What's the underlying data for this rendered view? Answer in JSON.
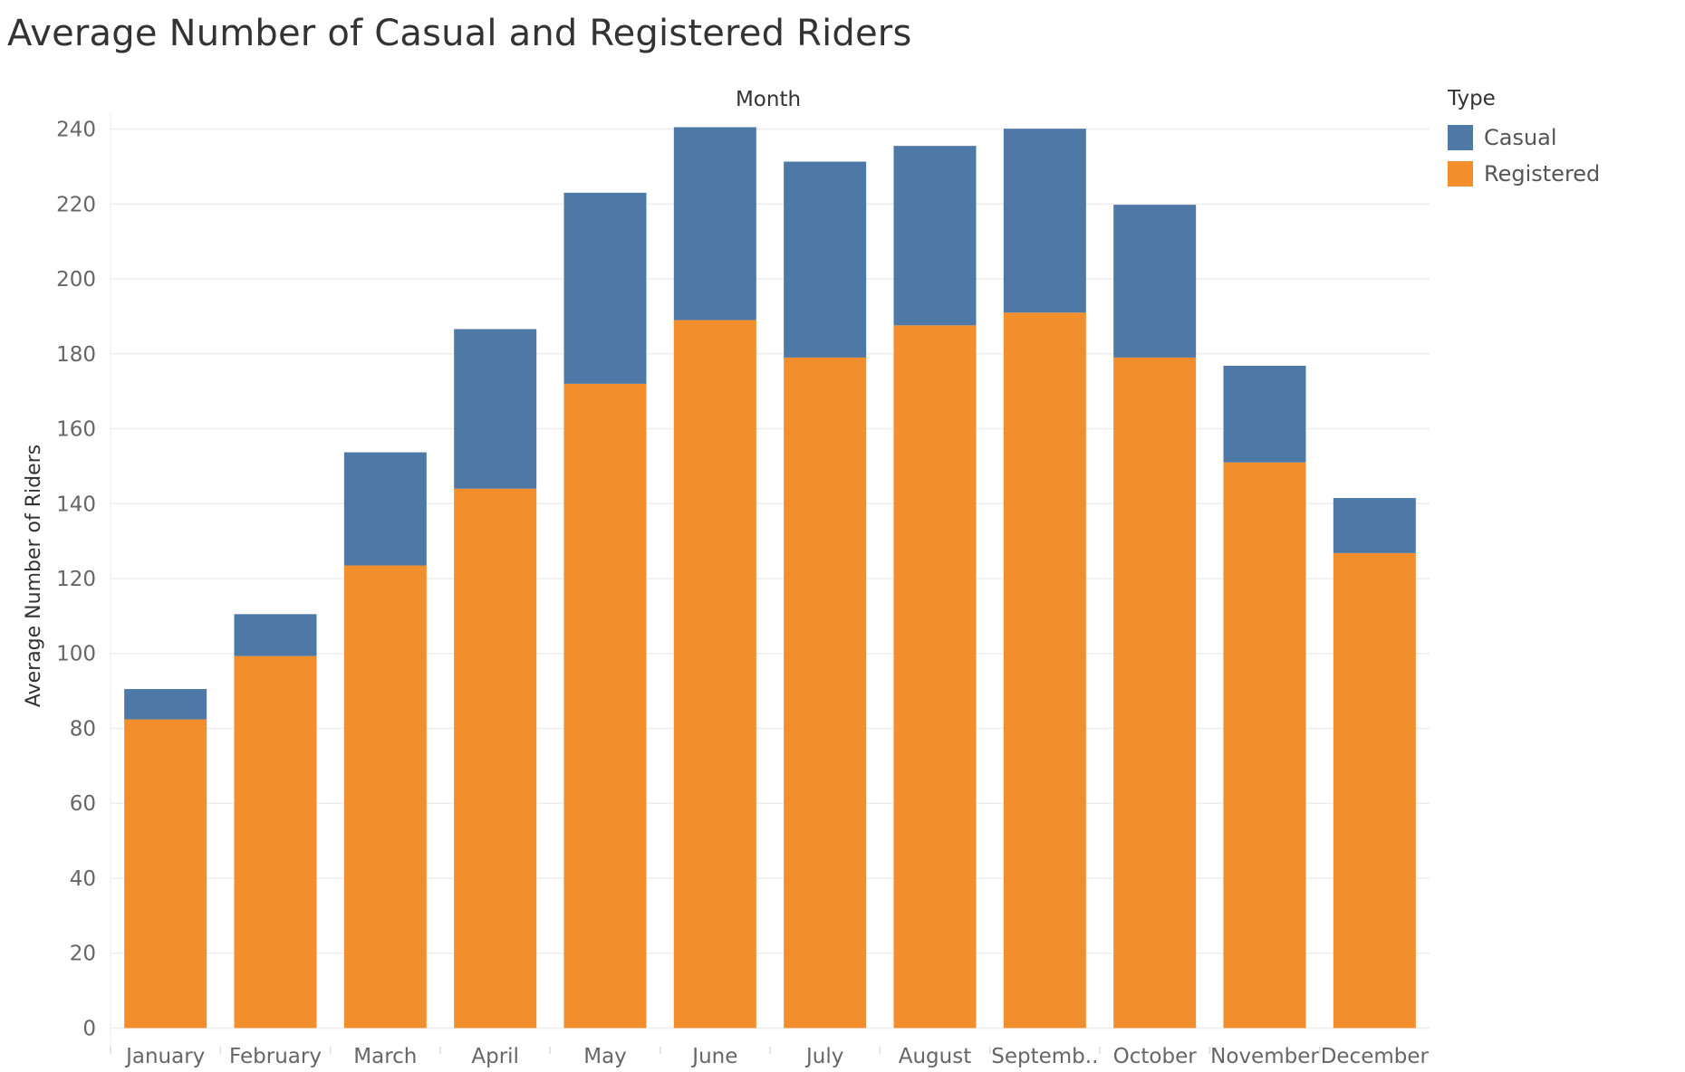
{
  "title": "Average Number of Casual and Registered Riders",
  "legend": {
    "title": "Type",
    "items": [
      {
        "label": "Casual",
        "color": "#4e79a7"
      },
      {
        "label": "Registered",
        "color": "#f28e2b"
      }
    ]
  },
  "chart_data": {
    "type": "bar",
    "stacked": true,
    "title": "Average Number of Casual and Registered Riders",
    "column_header": "Month",
    "xlabel": "",
    "ylabel": "Average Number of Riders",
    "ylim": [
      -4,
      244
    ],
    "yticks": [
      0,
      20,
      40,
      60,
      80,
      100,
      120,
      140,
      160,
      180,
      200,
      220,
      240
    ],
    "grid": true,
    "legend_position": "top-right",
    "categories": [
      "January",
      "February",
      "March",
      "April",
      "May",
      "June",
      "July",
      "August",
      "Septemb..",
      "October",
      "November",
      "December"
    ],
    "series": [
      {
        "name": "Registered",
        "color": "#f28e2b",
        "values": [
          82.4,
          99.3,
          123.5,
          144.0,
          172.0,
          189.0,
          179.0,
          187.6,
          191.0,
          179.0,
          151.0,
          126.8
        ]
      },
      {
        "name": "Casual",
        "color": "#4e79a7",
        "values": [
          8.1,
          11.2,
          30.2,
          42.6,
          51.0,
          51.5,
          52.3,
          47.9,
          49.1,
          40.8,
          25.8,
          14.7
        ]
      }
    ]
  }
}
